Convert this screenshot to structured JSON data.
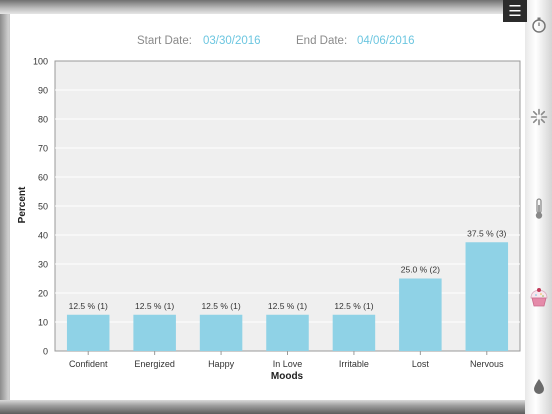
{
  "filters": {
    "start_label": "Start Date:",
    "start_value": "03/30/2016",
    "end_label": "End Date:",
    "end_value": "04/06/2016"
  },
  "sidebar": {
    "menu_icon": "menu-icon",
    "icons": [
      "stopwatch-icon",
      "burst-icon",
      "thermometer-icon",
      "cupcake-icon",
      "drop-icon"
    ]
  },
  "colors": {
    "bar": "#8fd2e6",
    "plot_bg": "#efefef",
    "accent": "#6cc6e0"
  },
  "chart_data": {
    "type": "bar",
    "categories": [
      "Confident",
      "Energized",
      "Happy",
      "In Love",
      "Irritable",
      "Lost",
      "Nervous"
    ],
    "values": [
      12.5,
      12.5,
      12.5,
      12.5,
      12.5,
      25.0,
      37.5
    ],
    "data_labels": [
      "12.5 % (1)",
      "12.5 % (1)",
      "12.5 % (1)",
      "12.5 % (1)",
      "12.5 % (1)",
      "25.0 % (2)",
      "37.5 % (3)"
    ],
    "xlabel": "Moods",
    "ylabel": "Percent",
    "ylim": [
      0,
      100
    ],
    "yticks": [
      0,
      10,
      20,
      30,
      40,
      50,
      60,
      70,
      80,
      90,
      100
    ],
    "grid": true
  }
}
